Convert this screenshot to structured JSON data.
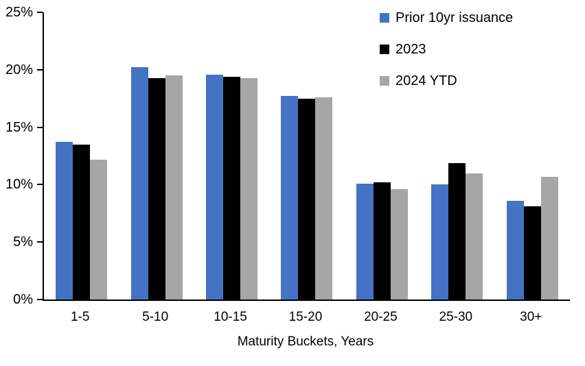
{
  "chart_data": {
    "type": "bar",
    "categories": [
      "1-5",
      "5-10",
      "10-15",
      "15-20",
      "20-25",
      "25-30",
      "30+"
    ],
    "series": [
      {
        "name": "Prior 10yr issuance",
        "color": "#4472C4",
        "values": [
          13.7,
          20.2,
          19.6,
          17.7,
          10.1,
          10.0,
          8.6
        ]
      },
      {
        "name": "2023",
        "color": "#000000",
        "values": [
          13.5,
          19.3,
          19.4,
          17.5,
          10.2,
          11.9,
          8.1
        ]
      },
      {
        "name": "2024 YTD",
        "color": "#A6A6A6",
        "values": [
          12.2,
          19.5,
          19.3,
          17.6,
          9.6,
          11.0,
          10.7
        ]
      }
    ],
    "title": "",
    "xlabel": "Maturity Buckets, Years",
    "ylabel": "",
    "ylim": [
      0,
      25
    ],
    "yticks": [
      0,
      5,
      10,
      15,
      20,
      25
    ],
    "ytick_labels": [
      "0%",
      "5%",
      "10%",
      "15%",
      "20%",
      "25%"
    ],
    "grid": false,
    "legend_position": "top-right",
    "axis_color": "#000000",
    "background_color": "#FFFFFF"
  }
}
